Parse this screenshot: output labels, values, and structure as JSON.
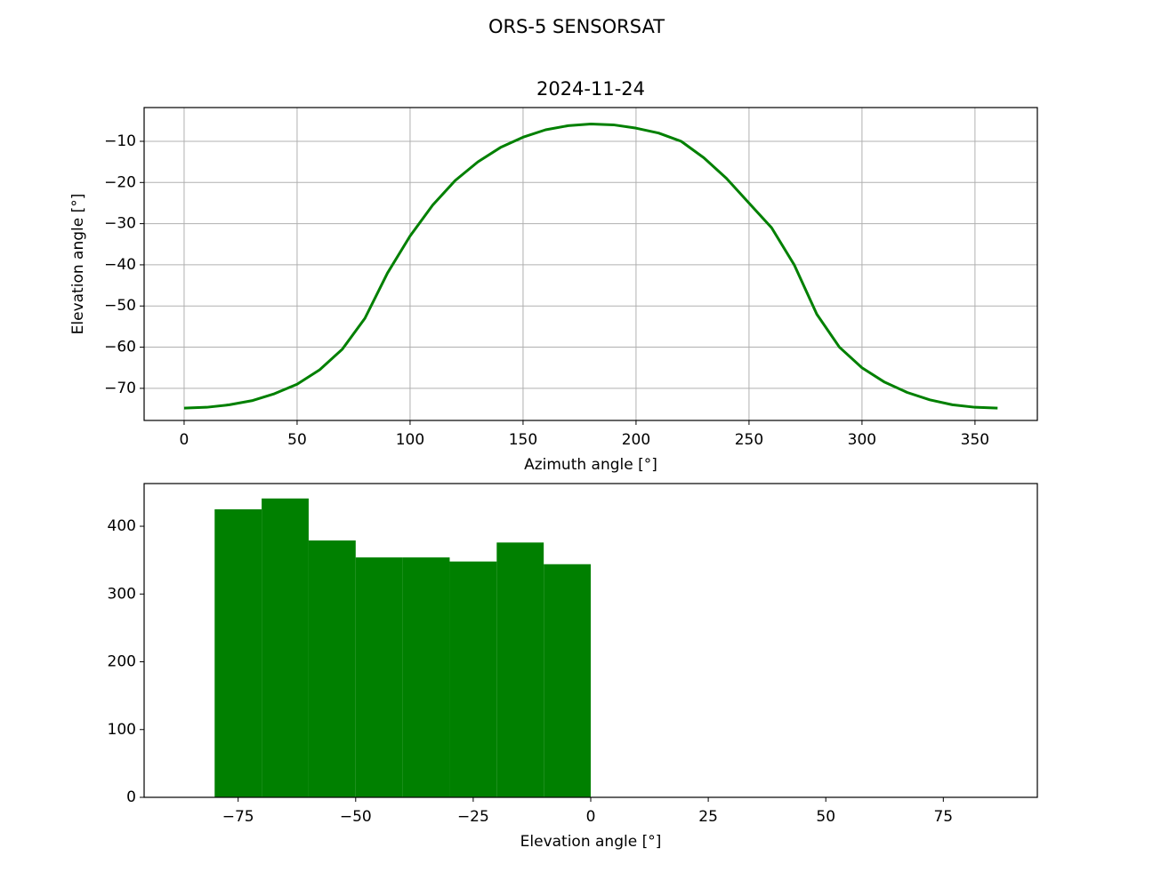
{
  "title": "ORS-5 SENSORSAT",
  "chart_data": [
    {
      "type": "line",
      "title": "2024-11-24",
      "x_label": "Azimuth angle [°]",
      "y_label": "Elevation angle [°]",
      "x": [
        0,
        10,
        20,
        30,
        40,
        50,
        60,
        70,
        80,
        90,
        100,
        110,
        120,
        130,
        140,
        150,
        160,
        170,
        180,
        190,
        200,
        210,
        220,
        230,
        240,
        250,
        260,
        270,
        280,
        290,
        300,
        310,
        320,
        330,
        340,
        350,
        360
      ],
      "series": [
        {
          "color": "#008000",
          "values": [
            -74.8,
            -74.6,
            -74,
            -73,
            -71.3,
            -69,
            -65.5,
            -60.5,
            -53,
            -42,
            -33,
            -25.5,
            -19.5,
            -15,
            -11.5,
            -9,
            -7.2,
            -6.2,
            -5.8,
            -6,
            -6.8,
            -8,
            -10,
            -14,
            -19,
            -25,
            -31,
            -40,
            -52,
            -60,
            -65,
            -68.5,
            -71,
            -72.8,
            -74,
            -74.6,
            -74.8
          ]
        }
      ],
      "xlim": [
        -17.7,
        377.6
      ],
      "ylim": [
        -77.8,
        -1.8
      ],
      "xticks": [
        0,
        50,
        100,
        150,
        200,
        250,
        300,
        350
      ],
      "yticks": [
        {
          "value": -70,
          "label": "−70"
        },
        {
          "value": -60,
          "label": "−60"
        },
        {
          "value": -50,
          "label": "−50"
        },
        {
          "value": -40,
          "label": "−40"
        },
        {
          "value": -30,
          "label": "−30"
        },
        {
          "value": -20,
          "label": "−20"
        },
        {
          "value": -10,
          "label": "−10"
        }
      ],
      "grid": true
    },
    {
      "type": "histogram",
      "x_label": "Elevation angle [°]",
      "bins": [
        -80,
        -70,
        -60,
        -50,
        -40,
        -30,
        -20,
        -10,
        0
      ],
      "values": [
        425,
        441,
        379,
        354,
        354,
        348,
        376,
        344
      ],
      "color": "#008000",
      "xlim": [
        -95,
        95
      ],
      "ylim": [
        0,
        463
      ],
      "xticks": [
        {
          "value": -75,
          "label": "−75"
        },
        {
          "value": -50,
          "label": "−50"
        },
        {
          "value": -25,
          "label": "−25"
        },
        0,
        25,
        50,
        75
      ],
      "yticks": [
        0,
        100,
        200,
        300,
        400
      ],
      "grid": false
    }
  ]
}
